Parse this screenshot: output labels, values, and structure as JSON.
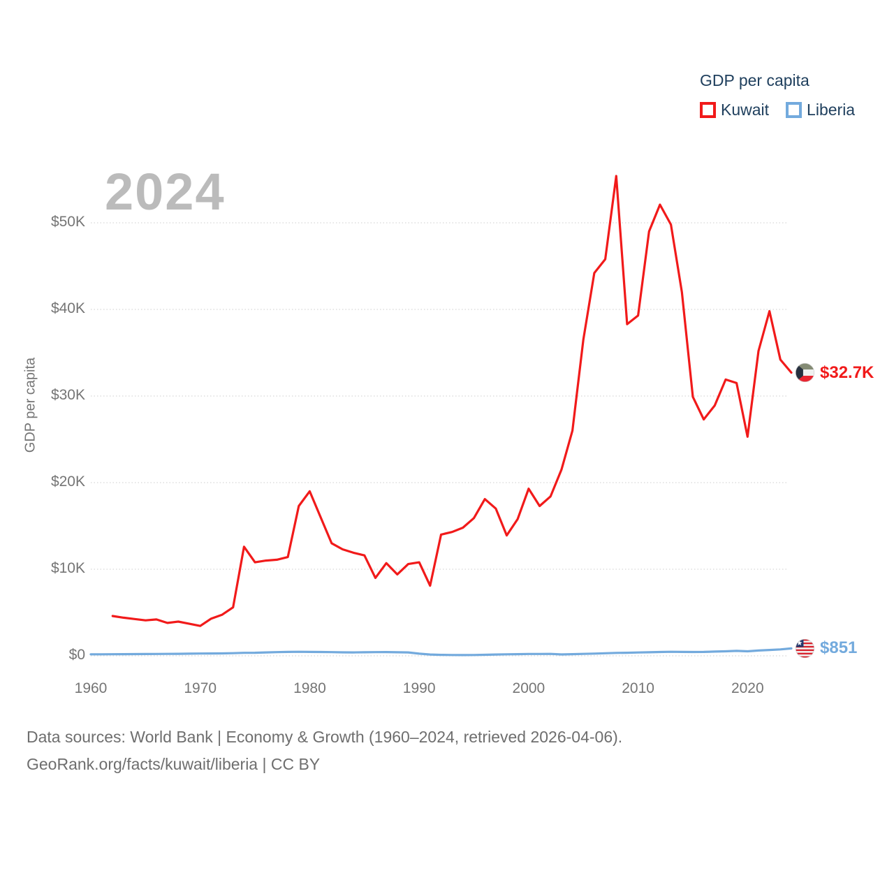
{
  "watermark": "2024",
  "legend": {
    "title": "GDP per capita",
    "items": [
      {
        "label": "Kuwait",
        "color": "#f11a1a"
      },
      {
        "label": "Liberia",
        "color": "#73aadd"
      }
    ]
  },
  "axes": {
    "y_title": "GDP per capita",
    "y_ticks": [
      {
        "value": 0,
        "label": "$0"
      },
      {
        "value": 10000,
        "label": "$10K"
      },
      {
        "value": 20000,
        "label": "$20K"
      },
      {
        "value": 30000,
        "label": "$30K"
      },
      {
        "value": 40000,
        "label": "$40K"
      },
      {
        "value": 50000,
        "label": "$50K"
      }
    ],
    "x_ticks": [
      {
        "value": 1960,
        "label": "1960"
      },
      {
        "value": 1970,
        "label": "1970"
      },
      {
        "value": 1980,
        "label": "1980"
      },
      {
        "value": 1990,
        "label": "1990"
      },
      {
        "value": 2000,
        "label": "2000"
      },
      {
        "value": 2010,
        "label": "2010"
      },
      {
        "value": 2020,
        "label": "2020"
      }
    ]
  },
  "chart_data": {
    "type": "line",
    "title": "GDP per capita",
    "ylabel": "GDP per capita",
    "xlim": [
      1960,
      2024
    ],
    "ylim": [
      0,
      57000
    ],
    "grid": "horizontal-dotted",
    "legend_position": "top-right",
    "series": [
      {
        "name": "Kuwait",
        "color": "#f11a1a",
        "start_year": 1962,
        "end_label": "$32.7K",
        "end_value": 32700,
        "values": [
          4600,
          4400,
          4250,
          4100,
          4200,
          3800,
          3950,
          3700,
          3450,
          4300,
          4750,
          5600,
          12600,
          10800,
          11000,
          11100,
          11400,
          17300,
          19000,
          16000,
          13000,
          12300,
          11900,
          11600,
          9000,
          10700,
          9400,
          10600,
          10800,
          8100,
          14000,
          14300,
          14800,
          15900,
          18100,
          17000,
          13900,
          15800,
          19300,
          17300,
          18400,
          21500,
          26000,
          36500,
          44200,
          45800,
          55400,
          38300,
          39300,
          49000,
          52100,
          49800,
          42000,
          29900,
          27300,
          28900,
          31900,
          31500,
          25300,
          35200,
          39800,
          34200,
          32700
        ]
      },
      {
        "name": "Liberia",
        "color": "#73aadd",
        "start_year": 1960,
        "end_label": "$851",
        "end_value": 851,
        "values": [
          175,
          180,
          185,
          190,
          200,
          210,
          220,
          225,
          235,
          250,
          265,
          275,
          285,
          305,
          345,
          355,
          395,
          425,
          450,
          465,
          455,
          445,
          425,
          405,
          395,
          415,
          425,
          435,
          415,
          395,
          250,
          150,
          115,
          95,
          85,
          95,
          125,
          155,
          175,
          195,
          215,
          215,
          225,
          165,
          195,
          225,
          255,
          295,
          335,
          355,
          385,
          415,
          445,
          465,
          455,
          445,
          455,
          495,
          525,
          575,
          525,
          615,
          675,
          745,
          851
        ]
      }
    ]
  },
  "footer": {
    "line1": "Data sources: World Bank | Economy & Growth (1960–2024, retrieved 2026-04-06).",
    "line2": "GeoRank.org/facts/kuwait/liberia | CC BY"
  }
}
